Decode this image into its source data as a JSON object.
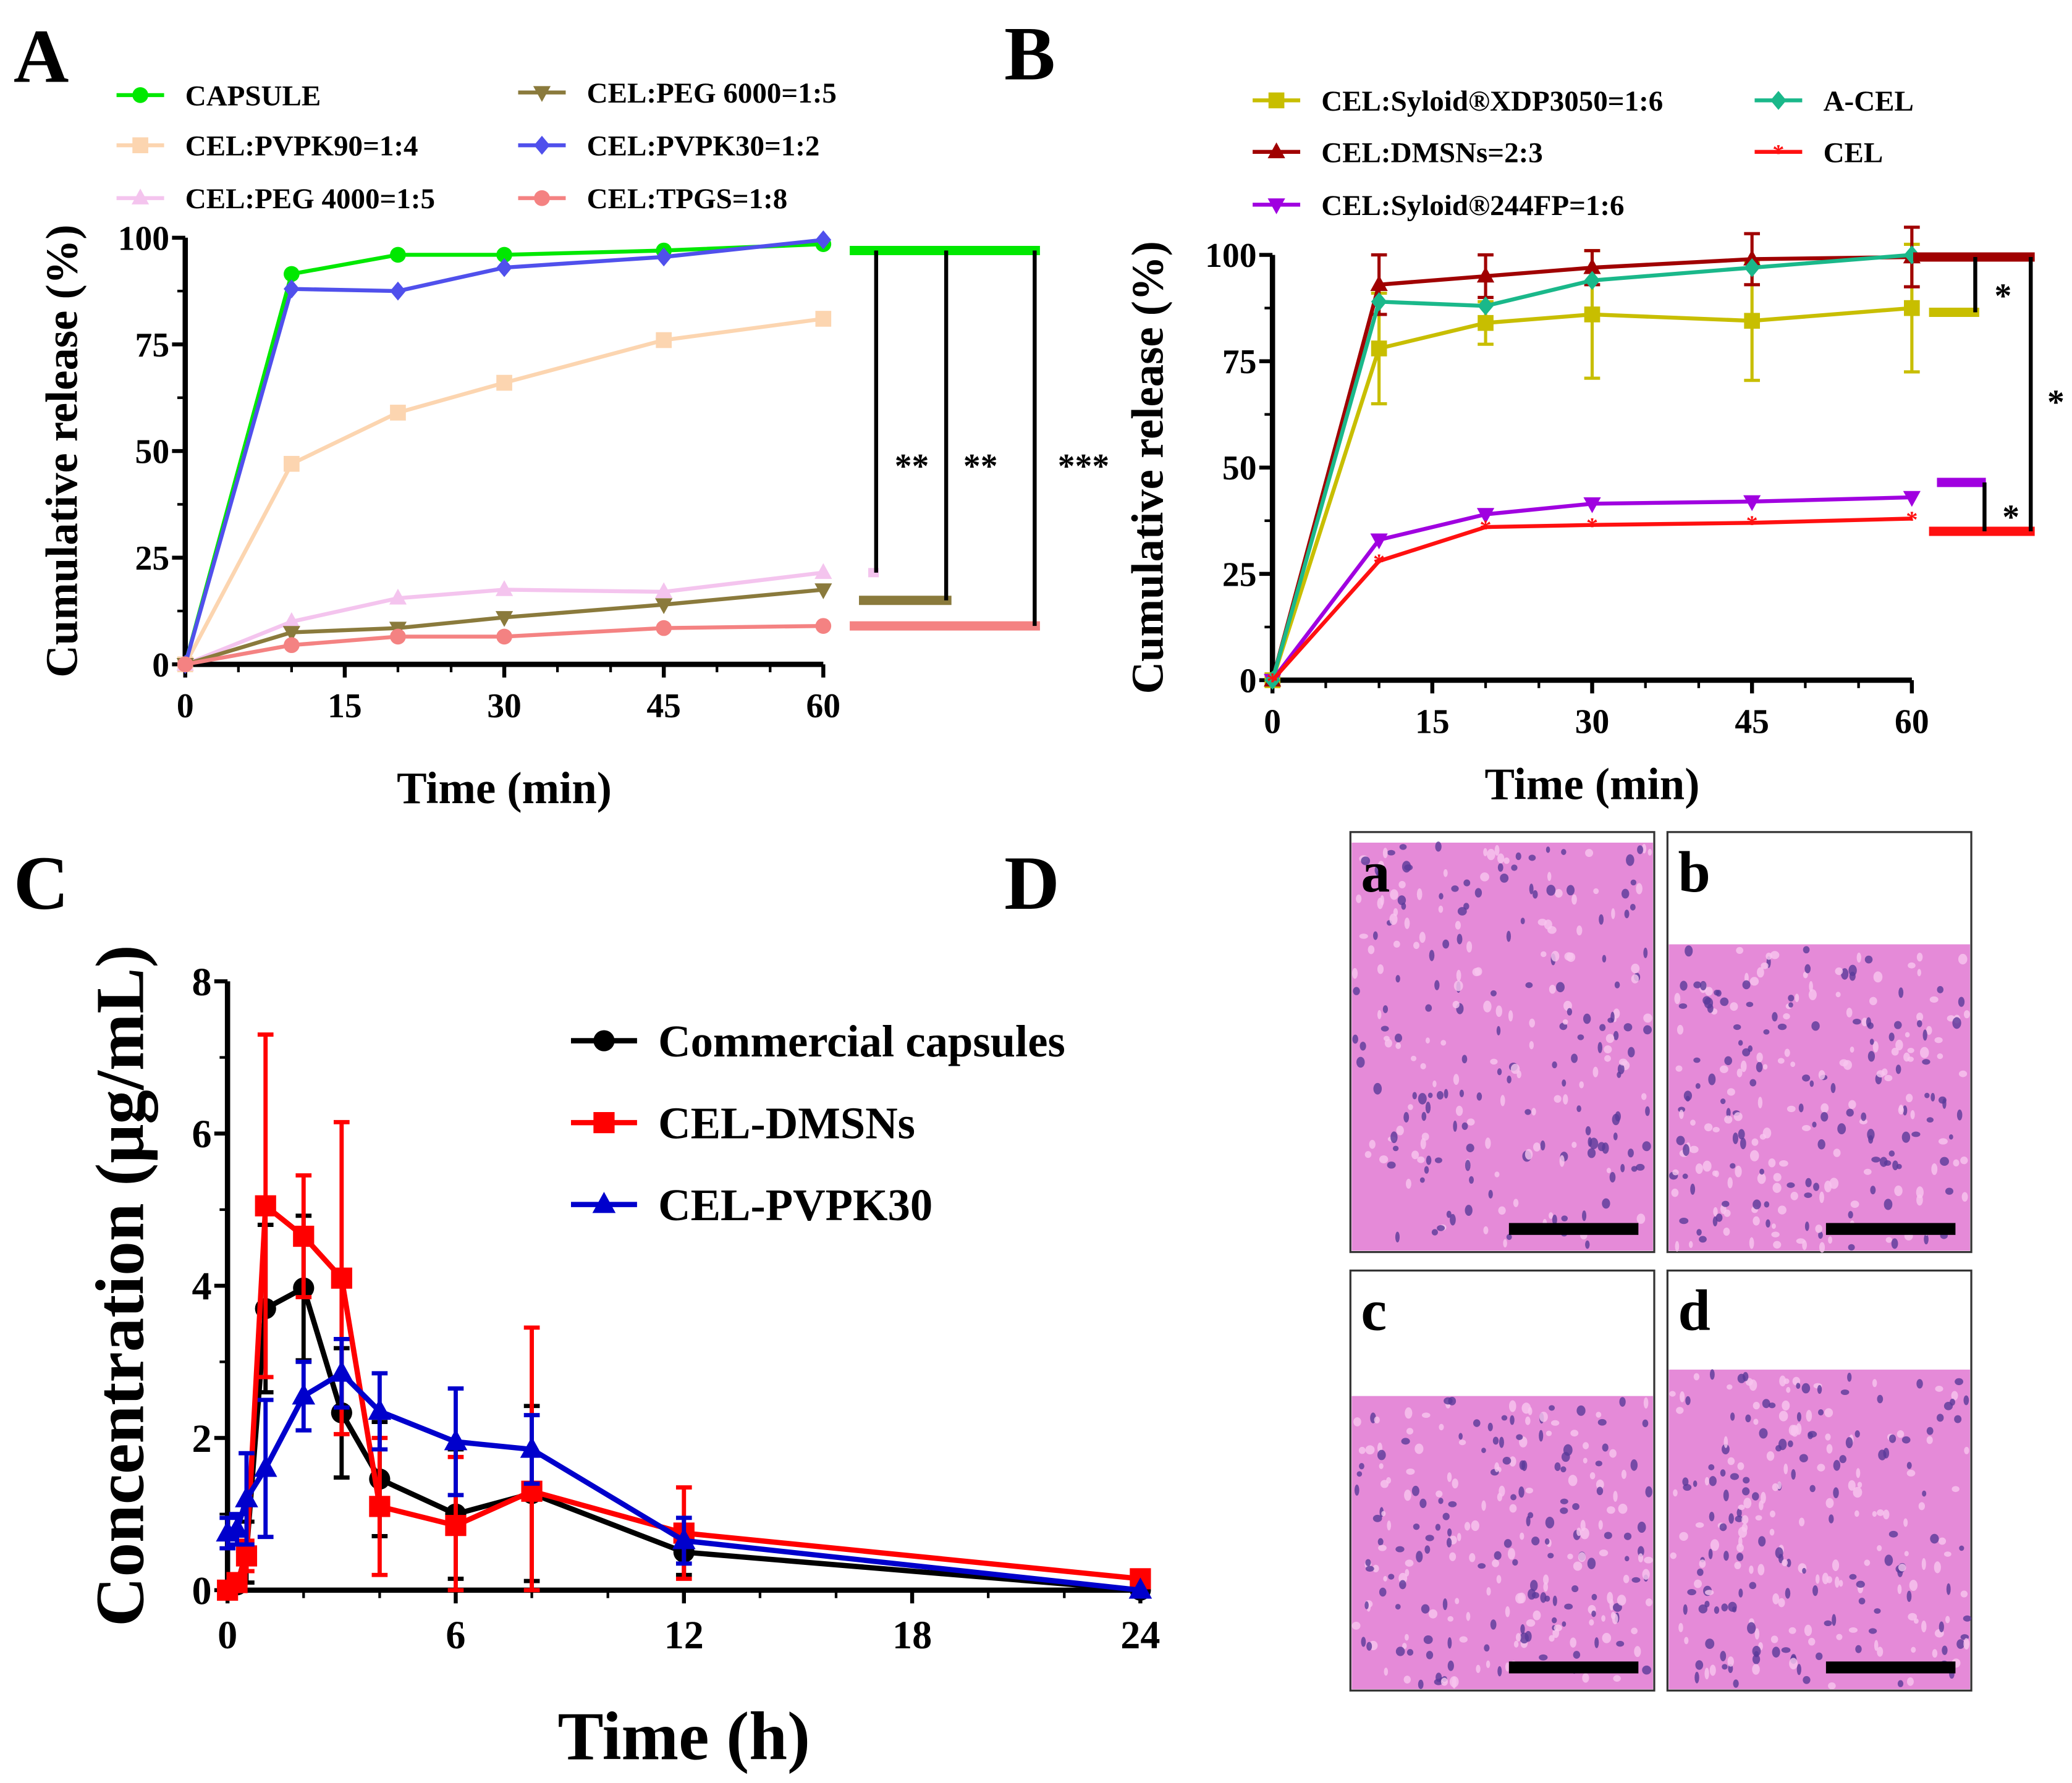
{
  "panels": {
    "A": "A",
    "B": "B",
    "C": "C",
    "D": "D"
  },
  "chart_data": [
    {
      "type": "line",
      "panel": "A",
      "xlabel": "Time (min)",
      "ylabel": "Cumulative release (%)",
      "xlim": [
        0,
        60
      ],
      "ylim": [
        0,
        100
      ],
      "xticks": [
        0,
        15,
        30,
        45,
        60
      ],
      "yticks": [
        0,
        25,
        50,
        75,
        100
      ],
      "x": [
        0,
        10,
        20,
        30,
        45,
        60
      ],
      "legend_placement": "top",
      "series": [
        {
          "name": "CAPSULE",
          "color": "#00e800",
          "marker": "circle",
          "values": [
            0,
            91.5,
            96,
            96,
            97,
            98.5
          ]
        },
        {
          "name": "CEL:PVPK90=1:4",
          "color": "#fcd5b0",
          "marker": "square",
          "values": [
            0,
            47,
            59,
            66,
            76,
            81
          ]
        },
        {
          "name": "CEL:PEG 4000=1:5",
          "color": "#f4c4ee",
          "marker": "triangle-up",
          "values": [
            0,
            10,
            15.5,
            17.5,
            17,
            21.5
          ]
        },
        {
          "name": "CEL:PEG 6000=1:5",
          "color": "#8a7a3c",
          "marker": "triangle-down",
          "values": [
            0,
            7.5,
            8.5,
            11,
            14,
            17.5
          ]
        },
        {
          "name": "CEL:PVPK30=1:2",
          "color": "#5050ec",
          "marker": "diamond",
          "values": [
            0,
            88,
            87.5,
            93,
            95.5,
            99.5
          ]
        },
        {
          "name": "CEL:TPGS=1:8",
          "color": "#f48282",
          "marker": "circle",
          "values": [
            0,
            4.5,
            6.5,
            6.5,
            8.5,
            9
          ]
        }
      ],
      "significance": [
        {
          "from": "CAPSULE",
          "to": "CEL:PEG 4000=1:5",
          "label": "**"
        },
        {
          "from": "CAPSULE",
          "to": "CEL:PEG 6000=1:5",
          "label": "**"
        },
        {
          "from": "CAPSULE",
          "to": "CEL:TPGS=1:8",
          "label": "***"
        }
      ]
    },
    {
      "type": "line",
      "panel": "B",
      "xlabel": "Time (min)",
      "ylabel": "Cumulative release (%)",
      "xlim": [
        0,
        60
      ],
      "ylim": [
        0,
        100
      ],
      "xticks": [
        0,
        15,
        30,
        45,
        60
      ],
      "yticks": [
        0,
        25,
        50,
        75,
        100
      ],
      "x": [
        0,
        10,
        20,
        30,
        45,
        60
      ],
      "legend_placement": "top",
      "series": [
        {
          "name": "CEL:Syloid®XDP3050=1:6",
          "color": "#c8be00",
          "marker": "square",
          "values": [
            0,
            78,
            84,
            86,
            84.5,
            87.5
          ],
          "errors": [
            0,
            13,
            5,
            15,
            14,
            15
          ]
        },
        {
          "name": "CEL:DMSNs=2:3",
          "color": "#a00000",
          "marker": "triangle-up",
          "values": [
            0,
            93,
            95,
            97,
            99,
            99.5
          ],
          "errors": [
            0,
            7,
            5,
            4,
            6,
            7
          ]
        },
        {
          "name": "CEL:Syloid®244FP=1:6",
          "color": "#a000e0",
          "marker": "triangle-down",
          "values": [
            0,
            33,
            39,
            41.5,
            42,
            43
          ],
          "errors": [
            0,
            0,
            0,
            0,
            0,
            0
          ]
        },
        {
          "name": "A-CEL",
          "color": "#1ab88a",
          "marker": "diamond",
          "values": [
            0,
            89,
            88,
            94,
            97,
            100
          ],
          "errors": [
            0,
            0,
            0,
            0,
            0,
            0
          ]
        },
        {
          "name": "CEL",
          "color": "#ff1010",
          "marker": "star",
          "values": [
            0,
            28,
            36,
            36.5,
            37,
            38
          ],
          "errors": [
            0,
            0,
            0,
            0,
            0,
            0
          ]
        }
      ],
      "significance": [
        {
          "from": "CEL:DMSNs=2:3",
          "to": "CEL:Syloid®XDP3050=1:6",
          "label": "*"
        },
        {
          "from": "CEL:Syloid®244FP=1:6",
          "to": "CEL",
          "label": "*"
        },
        {
          "from": "CEL:DMSNs=2:3",
          "to": "CEL",
          "label": "*"
        }
      ]
    },
    {
      "type": "line",
      "panel": "C",
      "xlabel": "Time (h)",
      "ylabel": "Concentration (μg/mL)",
      "xlim": [
        0,
        24
      ],
      "ylim": [
        0,
        8
      ],
      "xticks": [
        0,
        6,
        12,
        18,
        24
      ],
      "yticks": [
        0,
        2,
        4,
        6,
        8
      ],
      "x": [
        0,
        0.25,
        0.5,
        1,
        2,
        3,
        4,
        6,
        8,
        12,
        24
      ],
      "legend_placement": "top-right",
      "series": [
        {
          "name": "Commercial capsules",
          "color": "#000000",
          "marker": "circle",
          "values": [
            0,
            0.07,
            0.5,
            3.7,
            3.97,
            2.33,
            1.46,
            1.0,
            1.27,
            0.5,
            0
          ],
          "errors": [
            0,
            0.1,
            0.4,
            1.1,
            0.95,
            0.85,
            0.75,
            0.85,
            1.15,
            0.3,
            0
          ]
        },
        {
          "name": "CEL-DMSNs",
          "color": "#ff0000",
          "marker": "square",
          "values": [
            0,
            0.1,
            0.45,
            5.05,
            4.65,
            4.1,
            1.1,
            0.85,
            1.3,
            0.75,
            0.15
          ],
          "errors": [
            0,
            0.1,
            0.2,
            2.25,
            0.8,
            2.05,
            0.9,
            0.9,
            2.15,
            0.6,
            0.1
          ]
        },
        {
          "name": "CEL-PVPK30",
          "color": "#0000cc",
          "marker": "triangle-up",
          "values": [
            0.75,
            0.8,
            1.2,
            1.6,
            2.55,
            2.85,
            2.35,
            1.95,
            1.85,
            0.65,
            0
          ],
          "errors": [
            0.2,
            0.2,
            0.6,
            0.9,
            0.45,
            0.45,
            0.5,
            0.7,
            0.45,
            0.3,
            0
          ]
        }
      ]
    }
  ],
  "histology": {
    "labels": [
      "a",
      "b",
      "c",
      "d"
    ]
  }
}
